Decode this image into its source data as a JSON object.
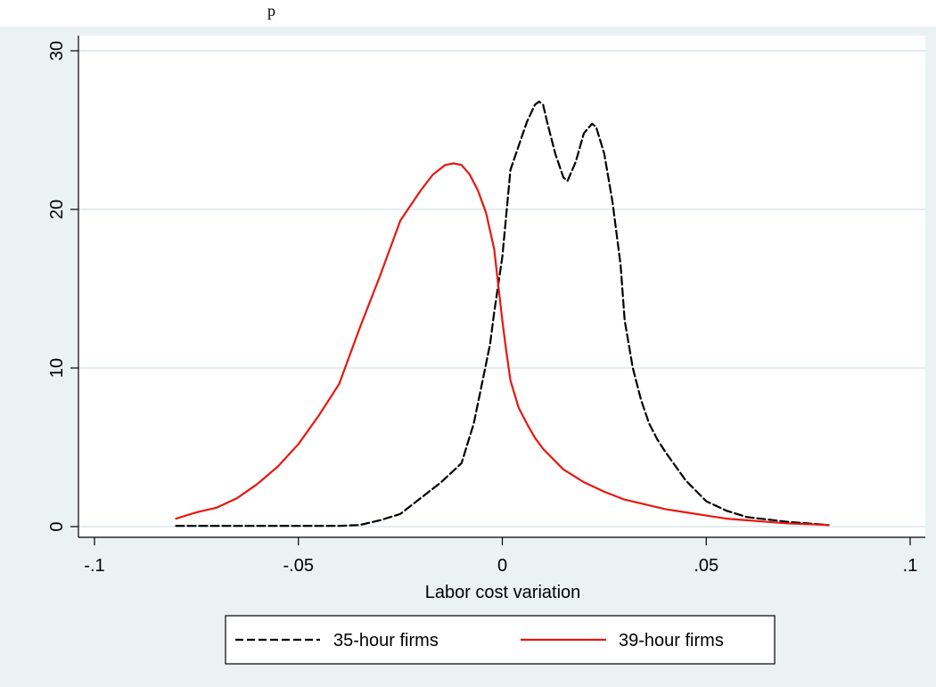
{
  "header": {
    "text": "p"
  },
  "chart_data": {
    "type": "line",
    "title": "",
    "xlabel": "Labor cost variation",
    "ylabel": "",
    "xlim": [
      -0.1,
      0.1
    ],
    "ylim": [
      0,
      30
    ],
    "xticks": [
      -0.1,
      -0.05,
      0,
      0.05,
      0.1
    ],
    "xtick_labels": [
      "-.1",
      "-.05",
      "0",
      ".05",
      ".1"
    ],
    "yticks": [
      0,
      10,
      20,
      30
    ],
    "ytick_labels": [
      "0",
      "10",
      "20",
      "30"
    ],
    "grid": true,
    "legend_position": "bottom",
    "colors": {
      "plot_bg": "#ffffff",
      "outer_bg": "#eaf2f3",
      "grid": "#dce7ea",
      "series_35": "#000000",
      "series_39": "#e8170f"
    },
    "series": [
      {
        "name": "35-hour firms",
        "color": "#000000",
        "dash": "dashed",
        "x": [
          -0.08,
          -0.07,
          -0.06,
          -0.05,
          -0.04,
          -0.035,
          -0.03,
          -0.025,
          -0.02,
          -0.015,
          -0.01,
          -0.007,
          -0.005,
          -0.003,
          -0.002,
          0.0,
          0.002,
          0.004,
          0.006,
          0.008,
          0.009,
          0.01,
          0.011,
          0.013,
          0.015,
          0.016,
          0.018,
          0.02,
          0.022,
          0.023,
          0.025,
          0.027,
          0.029,
          0.03,
          0.032,
          0.034,
          0.036,
          0.038,
          0.04,
          0.045,
          0.05,
          0.055,
          0.06,
          0.07,
          0.08
        ],
        "y": [
          0.05,
          0.05,
          0.05,
          0.05,
          0.05,
          0.1,
          0.4,
          0.8,
          1.8,
          2.8,
          4.0,
          6.5,
          9.0,
          11.5,
          13.5,
          17.0,
          22.5,
          24.0,
          25.5,
          26.6,
          26.8,
          26.6,
          25.5,
          23.5,
          22.0,
          21.8,
          23.0,
          24.8,
          25.4,
          25.2,
          23.5,
          20.5,
          16.5,
          13.0,
          10.0,
          8.0,
          6.5,
          5.5,
          4.7,
          2.9,
          1.6,
          1.0,
          0.6,
          0.3,
          0.1
        ]
      },
      {
        "name": "39-hour firms",
        "color": "#e8170f",
        "dash": "solid",
        "x": [
          -0.08,
          -0.075,
          -0.07,
          -0.065,
          -0.06,
          -0.055,
          -0.05,
          -0.045,
          -0.04,
          -0.035,
          -0.03,
          -0.025,
          -0.02,
          -0.017,
          -0.014,
          -0.012,
          -0.01,
          -0.008,
          -0.006,
          -0.004,
          -0.002,
          0.0,
          0.001,
          0.002,
          0.004,
          0.006,
          0.008,
          0.01,
          0.015,
          0.02,
          0.025,
          0.03,
          0.035,
          0.04,
          0.045,
          0.05,
          0.055,
          0.06,
          0.065,
          0.07,
          0.075,
          0.08
        ],
        "y": [
          0.5,
          0.9,
          1.2,
          1.8,
          2.7,
          3.8,
          5.2,
          7.0,
          9.0,
          12.5,
          15.8,
          19.3,
          21.2,
          22.2,
          22.8,
          22.9,
          22.8,
          22.2,
          21.2,
          19.8,
          17.5,
          13.0,
          11.0,
          9.2,
          7.5,
          6.5,
          5.6,
          4.9,
          3.6,
          2.8,
          2.2,
          1.7,
          1.4,
          1.1,
          0.9,
          0.7,
          0.5,
          0.4,
          0.3,
          0.2,
          0.15,
          0.1
        ]
      }
    ]
  }
}
